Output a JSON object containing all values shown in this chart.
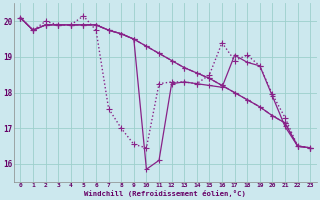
{
  "xlabel": "Windchill (Refroidissement éolien,°C)",
  "background_color": "#cce8ee",
  "grid_color": "#9dcfcc",
  "line_color": "#882288",
  "xlim": [
    -0.5,
    23.5
  ],
  "ylim": [
    15.5,
    20.5
  ],
  "xtick_labels": [
    "0",
    "1",
    "2",
    "3",
    "4",
    "5",
    "6",
    "7",
    "8",
    "9",
    "10",
    "11",
    "12",
    "13",
    "14",
    "15",
    "16",
    "17",
    "18",
    "19",
    "20",
    "21",
    "22",
    "23"
  ],
  "ytick_labels": [
    "16",
    "17",
    "18",
    "19",
    "20"
  ],
  "series": [
    [
      20.1,
      19.75,
      20.0,
      19.9,
      19.9,
      20.15,
      19.75,
      17.55,
      17.0,
      16.55,
      16.45,
      18.25,
      18.3,
      18.3,
      18.25,
      18.5,
      19.4,
      18.9,
      19.05,
      18.75,
      17.95,
      17.3,
      16.5,
      16.45
    ],
    [
      20.1,
      19.75,
      19.9,
      19.9,
      19.9,
      19.9,
      19.9,
      19.75,
      19.65,
      19.5,
      19.3,
      19.1,
      18.9,
      18.7,
      18.55,
      18.4,
      18.2,
      18.0,
      17.8,
      17.6,
      17.35,
      17.15,
      16.5,
      16.45
    ],
    [
      20.1,
      19.75,
      19.9,
      19.9,
      19.9,
      19.9,
      19.9,
      19.75,
      19.65,
      19.5,
      19.3,
      19.1,
      18.9,
      18.7,
      18.55,
      18.4,
      18.2,
      18.0,
      17.8,
      17.6,
      17.35,
      17.15,
      16.5,
      16.45
    ],
    [
      20.1,
      19.75,
      19.9,
      19.9,
      19.9,
      19.9,
      19.9,
      19.75,
      19.65,
      19.5,
      15.85,
      16.1,
      18.25,
      18.3,
      18.25,
      18.2,
      18.15,
      19.05,
      18.85,
      18.75,
      17.9,
      17.05,
      16.5,
      16.45
    ]
  ],
  "series_styles": [
    {
      "ls": ":",
      "lw": 1.0,
      "ms": 2.3
    },
    {
      "ls": "-",
      "lw": 0.9,
      "ms": 2.0
    },
    {
      "ls": "--",
      "lw": 0.9,
      "ms": 2.0
    },
    {
      "ls": "-",
      "lw": 0.9,
      "ms": 2.0
    }
  ]
}
